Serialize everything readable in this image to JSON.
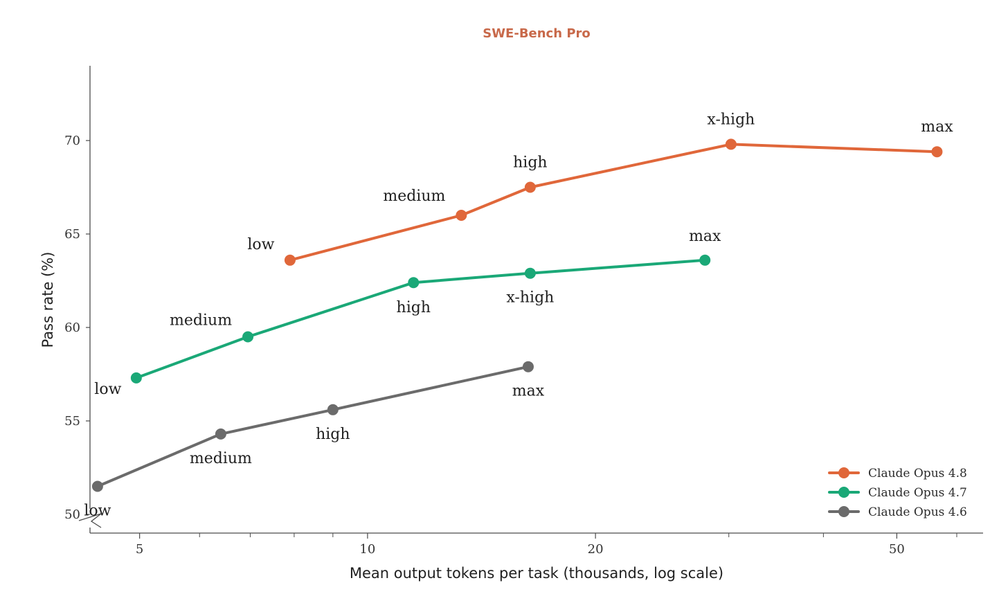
{
  "chart_data": {
    "type": "line",
    "title": "SWE-Bench Pro",
    "xlabel": "Mean output tokens per task (thousands, log scale)",
    "ylabel": "Pass rate (%)",
    "xscale": "log",
    "xlim": [
      4.3,
      65
    ],
    "ylim": [
      49,
      74
    ],
    "xticks": [
      5,
      10,
      20,
      50
    ],
    "xtick_labels": [
      "5",
      "10",
      "20",
      "50"
    ],
    "yticks": [
      50,
      55,
      60,
      65,
      70
    ],
    "ytick_labels": [
      "50",
      "55",
      "60",
      "65",
      "70"
    ],
    "minor_xticks": [
      6,
      7,
      8,
      9,
      30,
      40,
      60
    ],
    "grid": false,
    "legend_position": "bottom-right",
    "series": [
      {
        "name": "Claude Opus 4.8",
        "color": "#e0673a",
        "x": [
          7.9,
          13.3,
          16.4,
          30.2,
          56.5
        ],
        "y": [
          63.6,
          66.0,
          67.5,
          69.8,
          69.4
        ],
        "labels": [
          "low",
          "medium",
          "high",
          "x-high",
          "max"
        ]
      },
      {
        "name": "Claude Opus 4.7",
        "color": "#1aa877",
        "x": [
          4.95,
          6.95,
          11.5,
          16.4,
          27.9
        ],
        "y": [
          57.3,
          59.5,
          62.4,
          62.9,
          63.6
        ],
        "labels": [
          "low",
          "medium",
          "high",
          "x-high",
          "max"
        ]
      },
      {
        "name": "Claude Opus 4.6",
        "color": "#6b6b6b",
        "x": [
          4.4,
          6.4,
          9.0,
          16.3
        ],
        "y": [
          51.5,
          54.3,
          55.6,
          57.9
        ],
        "labels": [
          "low",
          "medium",
          "high",
          "max"
        ]
      }
    ]
  }
}
